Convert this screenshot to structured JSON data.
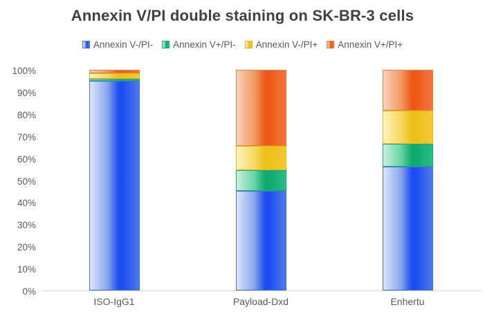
{
  "title": "Annexin V/PI double staining on SK-BR-3 cells",
  "chart_data": {
    "type": "bar",
    "subtype": "stacked-100-percent",
    "title": "Annexin V/PI double staining on SK-BR-3 cells",
    "categories": [
      "ISO-IgG1",
      "Payload-Dxd",
      "Enhertu"
    ],
    "series": [
      {
        "name": "Annexin V-/PI-",
        "values": [
          95,
          45,
          56
        ],
        "border_color": "#4472c4",
        "gradient": [
          "#dce6fa",
          "#88a5f0",
          "#1b4df2",
          "#507ae8"
        ]
      },
      {
        "name": "Annexin V+/PI-",
        "values": [
          1,
          9.5,
          10.5
        ],
        "border_color": "#1aa878",
        "gradient": [
          "#c9f0dd",
          "#67d6a6",
          "#0caa6e",
          "#2cbd85"
        ]
      },
      {
        "name": "Annexin V-/PI+",
        "values": [
          2.5,
          11,
          15
        ],
        "border_color": "#e2b718",
        "gradient": [
          "#fdf3bd",
          "#f6d95f",
          "#edc01a",
          "#f1ca35"
        ]
      },
      {
        "name": "Annexin V+/PI+",
        "values": [
          1.5,
          34.5,
          18.5
        ],
        "border_color": "#ed7d31",
        "gradient": [
          "#fbd2ba",
          "#f49a62",
          "#ee5a15",
          "#f1763e"
        ]
      }
    ],
    "y_ticks": [
      "0%",
      "10%",
      "20%",
      "30%",
      "40%",
      "50%",
      "60%",
      "70%",
      "80%",
      "90%",
      "100%"
    ],
    "ylim": [
      0,
      100
    ],
    "xlabel": "",
    "ylabel": "",
    "legend_position": "top",
    "grid": false,
    "axis_line_color": "#d9d9d9",
    "title_color": "#404040",
    "text_color": "#595959"
  }
}
